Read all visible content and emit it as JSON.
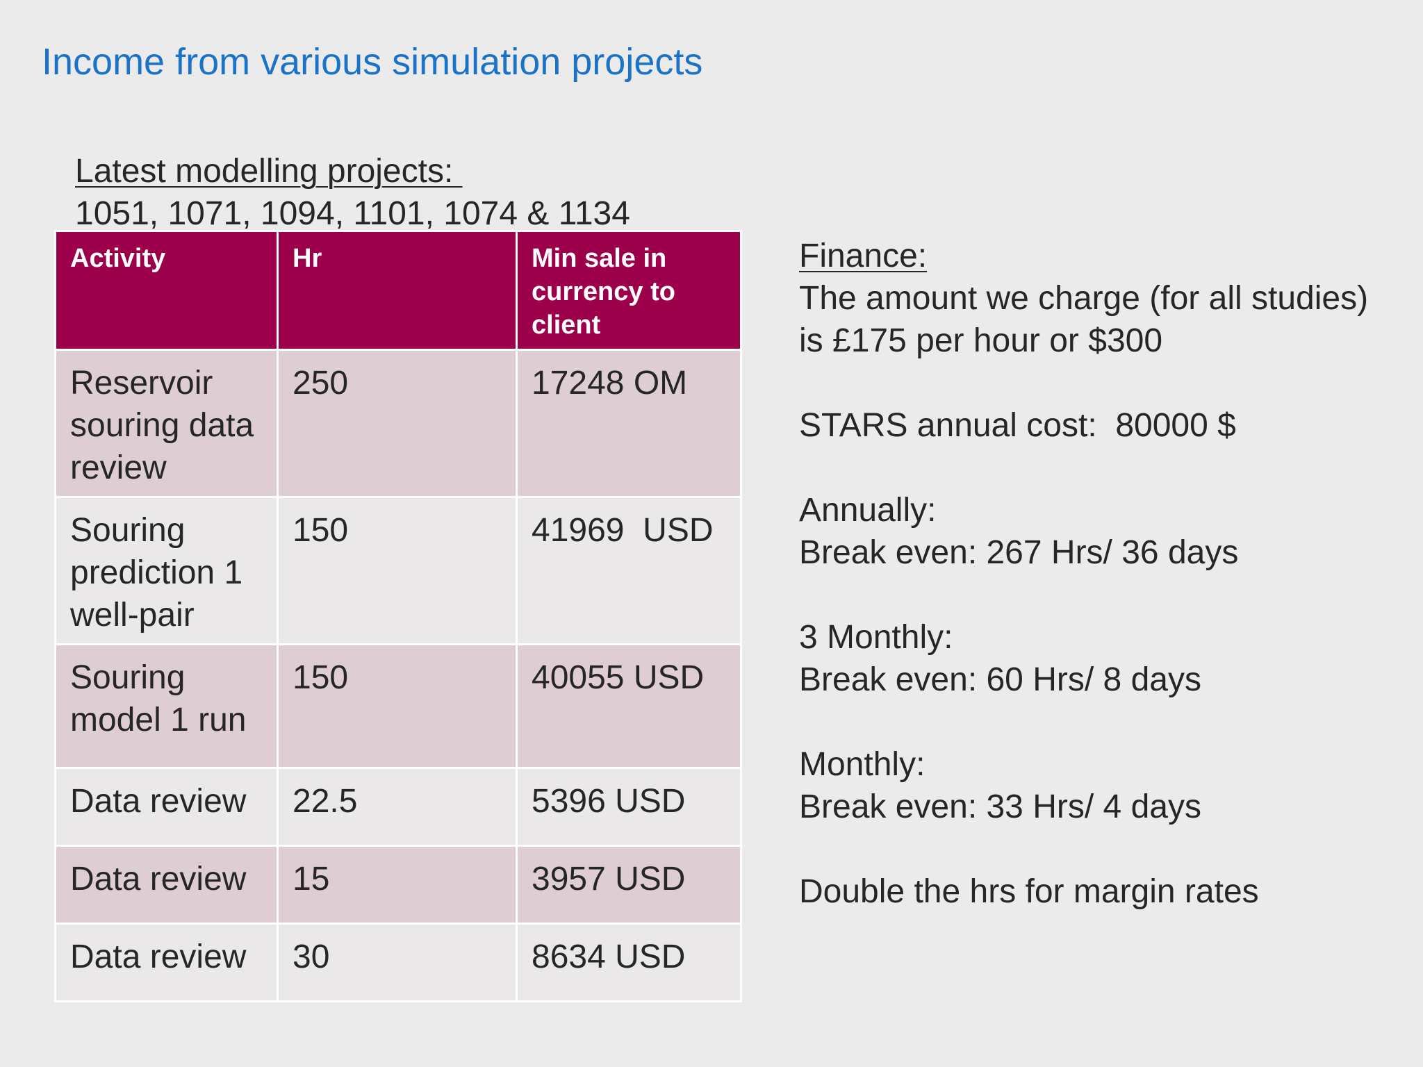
{
  "title": "Income from various simulation projects",
  "projects": {
    "heading": "Latest modelling projects: ",
    "list": "1051, 1071, 1094, 1101, 1074 & 1134"
  },
  "table": {
    "headers": [
      "Activity",
      "Hr",
      "Min sale in currency to client"
    ],
    "rows": [
      {
        "activity": "Reservoir souring data review",
        "hr": "250",
        "sale": "17248 OM"
      },
      {
        "activity": "Souring prediction 1 well-pair",
        "hr": "150",
        "sale": "41969  USD"
      },
      {
        "activity": "Souring model 1 run",
        "hr": "150",
        "sale": "40055 USD"
      },
      {
        "activity": "Data review",
        "hr": "22.5",
        "sale": "5396 USD"
      },
      {
        "activity": "Data review",
        "hr": "15",
        "sale": "3957 USD"
      },
      {
        "activity": "Data review",
        "hr": "30",
        "sale": "8634 USD"
      }
    ]
  },
  "finance": {
    "heading": "Finance:",
    "charge": "The amount we charge (for all studies) is £175 per hour or $300",
    "stars": "STARS annual cost:  80000 $",
    "annually_label": "Annually:",
    "annually_value": "Break even: 267 Hrs/ 36 days",
    "three_monthly_label": "3 Monthly:",
    "three_monthly_value": "Break even: 60 Hrs/ 8 days",
    "monthly_label": "Monthly:",
    "monthly_value": "Break even: 33 Hrs/ 4 days",
    "note": "Double the hrs for margin rates"
  }
}
